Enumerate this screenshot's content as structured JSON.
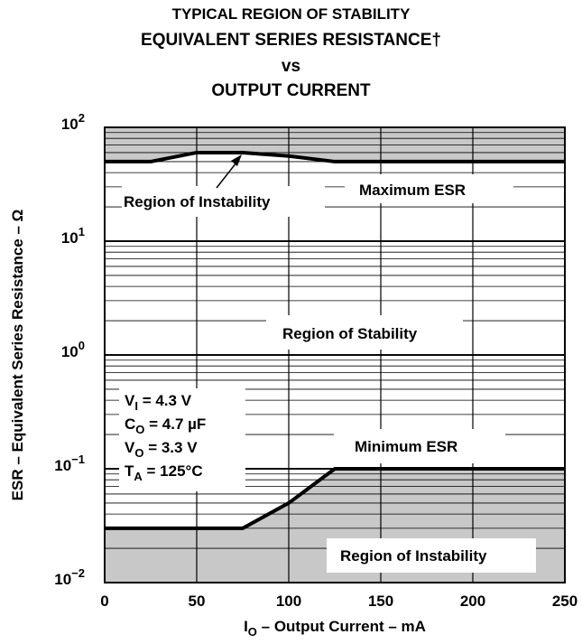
{
  "chart_data": {
    "type": "line",
    "title_lines": [
      "TYPICAL REGION OF STABILITY",
      "EQUIVALENT SERIES RESISTANCE†",
      "vs",
      "OUTPUT CURRENT"
    ],
    "xlabel": {
      "main": "I",
      "sub": "O",
      "rest": " – Output Current – mA"
    },
    "ylabel": "ESR – Equivalent Series Resistance – Ω",
    "xlim": [
      0,
      250
    ],
    "ylim": [
      0.01,
      100
    ],
    "yscale": "log",
    "x_ticks": [
      {
        "value": 0,
        "label": "0"
      },
      {
        "value": 50,
        "label": "50"
      },
      {
        "value": 100,
        "label": "100"
      },
      {
        "value": 150,
        "label": "150"
      },
      {
        "value": 200,
        "label": "200"
      },
      {
        "value": 250,
        "label": "250"
      }
    ],
    "y_ticks": [
      {
        "value": 100,
        "base": "10",
        "exp": "2"
      },
      {
        "value": 10,
        "base": "10",
        "exp": "1"
      },
      {
        "value": 1,
        "base": "10",
        "exp": "0"
      },
      {
        "value": 0.1,
        "base": "10",
        "exp": "−1"
      },
      {
        "value": 0.01,
        "base": "10",
        "exp": "−2"
      }
    ],
    "grid": "log minor gridlines, vertical gridlines every 50 mA",
    "series": [
      {
        "name": "Maximum ESR",
        "x": [
          0,
          25,
          50,
          75,
          100,
          125,
          150,
          200,
          250
        ],
        "y": [
          50,
          50,
          60,
          60,
          56,
          50,
          50,
          50,
          50
        ]
      },
      {
        "name": "Minimum ESR",
        "x": [
          0,
          25,
          50,
          75,
          100,
          125,
          150,
          200,
          250
        ],
        "y": [
          0.03,
          0.03,
          0.03,
          0.03,
          0.05,
          0.1,
          0.1,
          0.1,
          0.1
        ]
      }
    ],
    "annotations": {
      "upper_instability": "Region of Instability",
      "lower_instability": "Region of Instability",
      "stability": "Region of Stability",
      "max_esr": "Maximum ESR",
      "min_esr": "Minimum ESR"
    },
    "conditions": [
      {
        "main": "V",
        "sub": "I",
        "rest": " = 4.3 V"
      },
      {
        "main": "C",
        "sub": "O",
        "rest": " = 4.7 µF"
      },
      {
        "main": "V",
        "sub": "O",
        "rest": " = 3.3 V"
      },
      {
        "main": "T",
        "sub": "A",
        "rest": " = 125°C"
      }
    ],
    "colors": {
      "instability_fill": "#c8c8c8",
      "line": "#000000",
      "grid": "#000000"
    }
  }
}
